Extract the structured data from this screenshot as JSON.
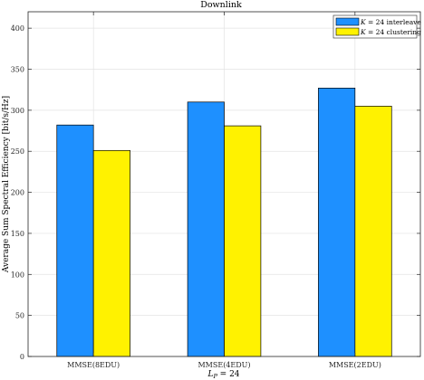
{
  "chart_data": {
    "type": "bar",
    "title": "Downlink",
    "xlabel": "L_P = 24",
    "xlabel_main": "L",
    "xlabel_sub": "P",
    "xlabel_rest": " = 24",
    "ylabel": "Average Sum Spectral Efficiency [bit/s/Hz]",
    "categories": [
      "MMSE(8EDU)",
      "MMSE(4EDU)",
      "MMSE(2EDU)"
    ],
    "series": [
      {
        "name": "K = 24 interleave",
        "name_var": "K",
        "name_rest": " = 24 interleave",
        "color": "#1E90FF",
        "values": [
          282,
          310,
          327
        ]
      },
      {
        "name": "K = 24 clustering",
        "name_var": "K",
        "name_rest": " = 24 clustering",
        "color": "#FFF200",
        "values": [
          251,
          281,
          305
        ]
      }
    ],
    "ylim": [
      0,
      420
    ],
    "yticks": [
      0,
      50,
      100,
      150,
      200,
      250,
      300,
      350,
      400
    ],
    "grid": true,
    "legend_position": "top-right"
  }
}
